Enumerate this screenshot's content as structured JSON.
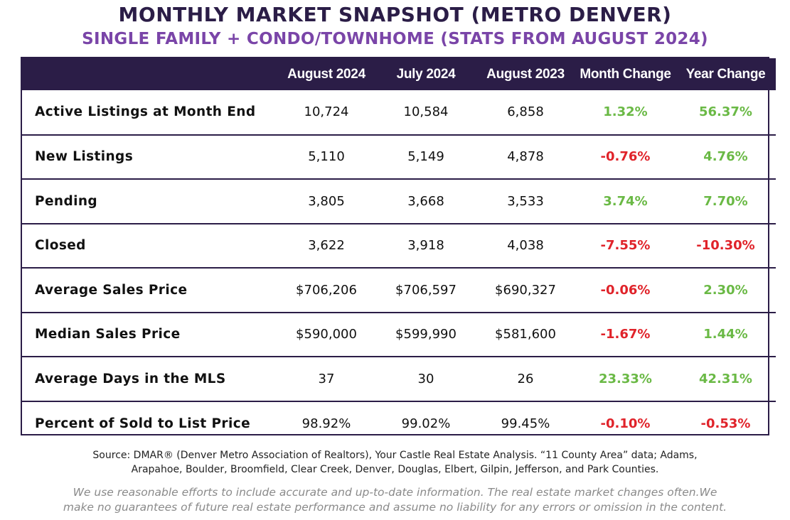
{
  "header": {
    "title": "MONTHLY MARKET SNAPSHOT (METRO DENVER)",
    "subtitle": "SINGLE FAMILY + CONDO/TOWNHOME (STATS FROM AUGUST 2024)"
  },
  "table": {
    "columns": [
      "",
      "August 2024",
      "July 2024",
      "August 2023",
      "Month Change",
      "Year Change"
    ],
    "rows": [
      {
        "label": "Active Listings at Month End",
        "aug2024": "10,724",
        "jul2024": "10,584",
        "aug2023": "6,858",
        "month_change": "1.32%",
        "year_change": "56.37%"
      },
      {
        "label": "New Listings",
        "aug2024": "5,110",
        "jul2024": "5,149",
        "aug2023": "4,878",
        "month_change": "-0.76%",
        "year_change": "4.76%"
      },
      {
        "label": "Pending",
        "aug2024": "3,805",
        "jul2024": "3,668",
        "aug2023": "3,533",
        "month_change": "3.74%",
        "year_change": "7.70%"
      },
      {
        "label": "Closed",
        "aug2024": "3,622",
        "jul2024": "3,918",
        "aug2023": "4,038",
        "month_change": "-7.55%",
        "year_change": "-10.30%"
      },
      {
        "label": "Average Sales Price",
        "aug2024": "$706,206",
        "jul2024": "$706,597",
        "aug2023": "$690,327",
        "month_change": "-0.06%",
        "year_change": "2.30%"
      },
      {
        "label": "Median Sales Price",
        "aug2024": "$590,000",
        "jul2024": "$599,990",
        "aug2023": "$581,600",
        "month_change": "-1.67%",
        "year_change": "1.44%"
      },
      {
        "label": "Average Days in the MLS",
        "aug2024": "37",
        "jul2024": "30",
        "aug2023": "26",
        "month_change": "23.33%",
        "year_change": "42.31%"
      },
      {
        "label": "Percent of Sold to List Price",
        "aug2024": "98.92%",
        "jul2024": "99.02%",
        "aug2023": "99.45%",
        "month_change": "-0.10%",
        "year_change": "-0.53%"
      }
    ]
  },
  "footer": {
    "source_line1": "Source: DMAR® (Denver Metro Association of Realtors), Your Castle Real Estate Analysis. “11 County Area” data; Adams,",
    "source_line2": "Arapahoe, Boulder, Broomfield, Clear Creek, Denver, Douglas, Elbert, Gilpin, Jefferson, and Park Counties.",
    "disclaimer_line1": "We use reasonable efforts to include accurate and up-to-date information. The real estate market changes often.We",
    "disclaimer_line2": "make no guarantees of future real estate performance and assume no liability for any errors or omission in the content."
  },
  "colors": {
    "header_bg": "#2b1d47",
    "title": "#2b1d47",
    "subtitle": "#7a45a8",
    "positive": "#6ab945",
    "negative": "#e0232a",
    "disclaimer": "#8a8a8a"
  }
}
